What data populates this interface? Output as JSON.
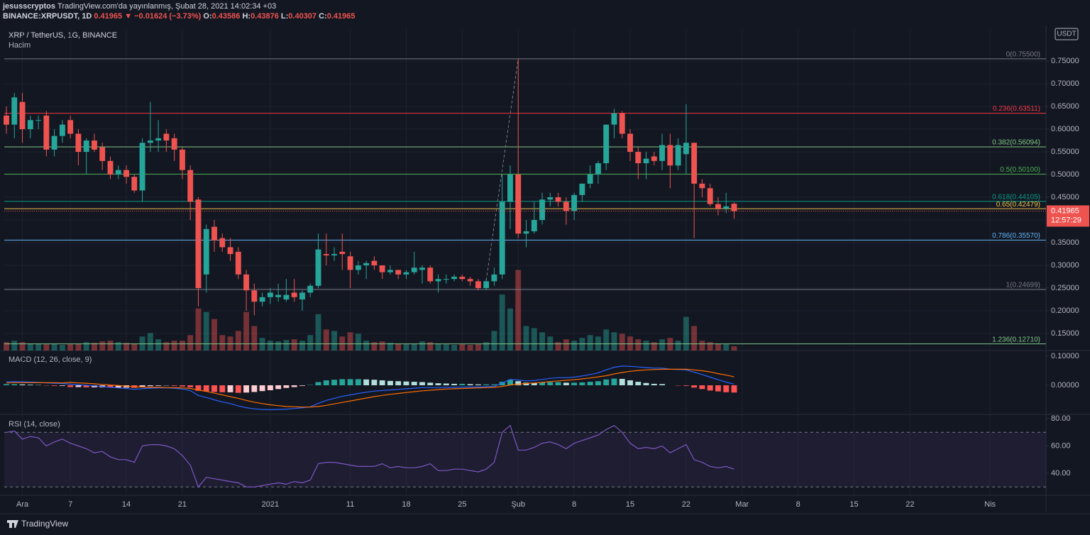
{
  "header": {
    "author": "jesusscryptos",
    "published": "TradingView.com'da yayınlanmış, Şubat 28, 2021 14:02:34 +03",
    "symbol": "BINANCE:XRPUSDT, 1D",
    "last": "0.41965",
    "change": "▼ −0.01624 (−3.73%)",
    "ohlc": [
      {
        "label": "O:",
        "value": "0.43586"
      },
      {
        "label": "H:",
        "value": "0.43876"
      },
      {
        "label": "L:",
        "value": "0.40307"
      },
      {
        "label": "C:",
        "value": "0.41965"
      }
    ]
  },
  "footer": {
    "brand": "TradingView"
  },
  "chart_data": {
    "type": "candlestick",
    "title": "XRP / TetherUS, 1G, BINANCE",
    "currency": "USDT",
    "countdown": "12:57:29",
    "up_color": "#26a69a",
    "down_color": "#ef5350",
    "x": [
      "2020-11-29",
      "2020-11-30",
      "2020-12-01",
      "2020-12-02",
      "2020-12-03",
      "2020-12-04",
      "2020-12-05",
      "2020-12-06",
      "2020-12-07",
      "2020-12-08",
      "2020-12-09",
      "2020-12-10",
      "2020-12-11",
      "2020-12-12",
      "2020-12-13",
      "2020-12-14",
      "2020-12-15",
      "2020-12-16",
      "2020-12-17",
      "2020-12-18",
      "2020-12-19",
      "2020-12-20",
      "2020-12-21",
      "2020-12-22",
      "2020-12-23",
      "2020-12-24",
      "2020-12-25",
      "2020-12-26",
      "2020-12-27",
      "2020-12-28",
      "2020-12-29",
      "2020-12-30",
      "2020-12-31",
      "2021-01-01",
      "2021-01-02",
      "2021-01-03",
      "2021-01-04",
      "2021-01-05",
      "2021-01-06",
      "2021-01-07",
      "2021-01-08",
      "2021-01-09",
      "2021-01-10",
      "2021-01-11",
      "2021-01-12",
      "2021-01-13",
      "2021-01-14",
      "2021-01-15",
      "2021-01-16",
      "2021-01-17",
      "2021-01-18",
      "2021-01-19",
      "2021-01-20",
      "2021-01-21",
      "2021-01-22",
      "2021-01-23",
      "2021-01-24",
      "2021-01-25",
      "2021-01-26",
      "2021-01-27",
      "2021-01-28",
      "2021-01-29",
      "2021-01-30",
      "2021-01-31",
      "2021-02-01",
      "2021-02-02",
      "2021-02-03",
      "2021-02-04",
      "2021-02-05",
      "2021-02-06",
      "2021-02-07",
      "2021-02-08",
      "2021-02-09",
      "2021-02-10",
      "2021-02-11",
      "2021-02-12",
      "2021-02-13",
      "2021-02-14",
      "2021-02-15",
      "2021-02-16",
      "2021-02-17",
      "2021-02-18",
      "2021-02-19",
      "2021-02-20",
      "2021-02-21",
      "2021-02-22",
      "2021-02-23",
      "2021-02-24",
      "2021-02-25",
      "2021-02-26",
      "2021-02-27",
      "2021-02-28"
    ],
    "open": [
      0.63,
      0.61,
      0.66,
      0.6,
      0.62,
      0.63,
      0.555,
      0.585,
      0.62,
      0.59,
      0.55,
      0.575,
      0.56,
      0.53,
      0.5,
      0.51,
      0.495,
      0.465,
      0.57,
      0.575,
      0.59,
      0.58,
      0.555,
      0.51,
      0.445,
      0.28,
      0.385,
      0.36,
      0.34,
      0.33,
      0.28,
      0.245,
      0.22,
      0.23,
      0.23,
      0.225,
      0.24,
      0.225,
      0.24,
      0.255,
      0.325,
      0.322,
      0.33,
      0.32,
      0.29,
      0.3,
      0.31,
      0.3,
      0.285,
      0.29,
      0.28,
      0.285,
      0.29,
      0.295,
      0.265,
      0.27,
      0.27,
      0.275,
      0.27,
      0.265,
      0.25,
      0.265,
      0.28,
      0.44,
      0.5,
      0.37,
      0.375,
      0.4,
      0.445,
      0.45,
      0.44,
      0.42,
      0.455,
      0.48,
      0.5,
      0.525,
      0.61,
      0.635,
      0.59,
      0.55,
      0.525,
      0.54,
      0.53,
      0.565,
      0.52,
      0.545,
      0.57,
      0.48,
      0.47,
      0.435,
      0.425,
      0.43586
    ],
    "high": [
      0.65,
      0.68,
      0.68,
      0.63,
      0.63,
      0.64,
      0.6,
      0.62,
      0.63,
      0.6,
      0.58,
      0.59,
      0.57,
      0.54,
      0.52,
      0.52,
      0.5,
      0.58,
      0.66,
      0.62,
      0.6,
      0.59,
      0.56,
      0.52,
      0.45,
      0.39,
      0.4,
      0.37,
      0.36,
      0.34,
      0.29,
      0.26,
      0.24,
      0.25,
      0.26,
      0.27,
      0.27,
      0.245,
      0.26,
      0.37,
      0.37,
      0.34,
      0.37,
      0.33,
      0.31,
      0.31,
      0.32,
      0.3,
      0.3,
      0.29,
      0.29,
      0.33,
      0.3,
      0.3,
      0.28,
      0.28,
      0.28,
      0.28,
      0.275,
      0.27,
      0.27,
      0.295,
      0.5,
      0.52,
      0.755,
      0.4,
      0.44,
      0.46,
      0.46,
      0.46,
      0.45,
      0.46,
      0.48,
      0.52,
      0.53,
      0.61,
      0.645,
      0.64,
      0.6,
      0.56,
      0.55,
      0.55,
      0.59,
      0.59,
      0.58,
      0.655,
      0.57,
      0.49,
      0.48,
      0.45,
      0.46,
      0.43876
    ],
    "low": [
      0.59,
      0.58,
      0.57,
      0.58,
      0.6,
      0.54,
      0.54,
      0.57,
      0.58,
      0.52,
      0.5,
      0.55,
      0.51,
      0.49,
      0.49,
      0.48,
      0.46,
      0.44,
      0.55,
      0.55,
      0.55,
      0.53,
      0.49,
      0.4,
      0.21,
      0.24,
      0.33,
      0.33,
      0.31,
      0.27,
      0.2,
      0.19,
      0.21,
      0.215,
      0.22,
      0.22,
      0.22,
      0.2,
      0.23,
      0.25,
      0.3,
      0.31,
      0.29,
      0.25,
      0.28,
      0.27,
      0.29,
      0.27,
      0.28,
      0.27,
      0.27,
      0.28,
      0.26,
      0.26,
      0.24,
      0.26,
      0.265,
      0.265,
      0.255,
      0.245,
      0.245,
      0.255,
      0.27,
      0.38,
      0.36,
      0.34,
      0.37,
      0.39,
      0.43,
      0.43,
      0.39,
      0.4,
      0.44,
      0.47,
      0.48,
      0.51,
      0.58,
      0.58,
      0.53,
      0.49,
      0.49,
      0.52,
      0.51,
      0.47,
      0.51,
      0.5,
      0.36,
      0.45,
      0.43,
      0.41,
      0.415,
      0.40307
    ],
    "close": [
      0.61,
      0.67,
      0.6,
      0.62,
      0.62,
      0.555,
      0.585,
      0.61,
      0.59,
      0.55,
      0.575,
      0.555,
      0.53,
      0.5,
      0.51,
      0.495,
      0.465,
      0.57,
      0.575,
      0.58,
      0.575,
      0.555,
      0.51,
      0.44,
      0.25,
      0.38,
      0.355,
      0.34,
      0.325,
      0.28,
      0.245,
      0.22,
      0.23,
      0.24,
      0.235,
      0.235,
      0.23,
      0.24,
      0.255,
      0.335,
      0.322,
      0.325,
      0.325,
      0.29,
      0.3,
      0.305,
      0.3,
      0.285,
      0.29,
      0.28,
      0.285,
      0.295,
      0.295,
      0.265,
      0.27,
      0.27,
      0.275,
      0.27,
      0.265,
      0.25,
      0.265,
      0.28,
      0.44,
      0.5,
      0.37,
      0.375,
      0.4,
      0.445,
      0.45,
      0.44,
      0.42,
      0.455,
      0.48,
      0.5,
      0.525,
      0.61,
      0.635,
      0.59,
      0.55,
      0.525,
      0.535,
      0.53,
      0.565,
      0.52,
      0.565,
      0.57,
      0.48,
      0.47,
      0.435,
      0.425,
      0.43,
      0.41965
    ],
    "volume": {
      "name": "Hacim",
      "values": [
        12,
        14,
        12,
        10,
        10,
        9,
        10,
        8,
        9,
        10,
        12,
        11,
        13,
        14,
        12,
        11,
        10,
        20,
        25,
        16,
        12,
        14,
        14,
        22,
        60,
        55,
        45,
        22,
        20,
        28,
        55,
        35,
        18,
        14,
        13,
        15,
        16,
        14,
        22,
        52,
        30,
        28,
        20,
        26,
        24,
        14,
        12,
        13,
        11,
        10,
        9,
        10,
        13,
        12,
        10,
        9,
        8,
        9,
        8,
        9,
        12,
        28,
        80,
        60,
        115,
        35,
        32,
        26,
        20,
        12,
        16,
        14,
        18,
        22,
        20,
        30,
        26,
        24,
        20,
        16,
        14,
        12,
        16,
        18,
        14,
        48,
        35,
        14,
        12,
        10,
        9,
        6
      ]
    },
    "xlim": [
      "2020-11-29",
      "2021-04-08"
    ],
    "xticks": [
      {
        "value": "2020-12-01",
        "label": "Ara"
      },
      {
        "value": "2020-12-07",
        "label": "7"
      },
      {
        "value": "2020-12-14",
        "label": "14"
      },
      {
        "value": "2020-12-21",
        "label": "21"
      },
      {
        "value": "2021-01-01",
        "label": "2021"
      },
      {
        "value": "2021-01-11",
        "label": "11"
      },
      {
        "value": "2021-01-18",
        "label": "18"
      },
      {
        "value": "2021-01-25",
        "label": "25"
      },
      {
        "value": "2021-02-01",
        "label": "Şub"
      },
      {
        "value": "2021-02-08",
        "label": "8"
      },
      {
        "value": "2021-02-15",
        "label": "15"
      },
      {
        "value": "2021-02-22",
        "label": "22"
      },
      {
        "value": "2021-03-01",
        "label": "Mar"
      },
      {
        "value": "2021-03-08",
        "label": "8"
      },
      {
        "value": "2021-03-15",
        "label": "15"
      },
      {
        "value": "2021-03-22",
        "label": "22"
      },
      {
        "value": "2021-04-01",
        "label": "Nis"
      }
    ],
    "ylim": [
      0.1125,
      0.822
    ],
    "yticks": [
      {
        "value": 0.15,
        "label": "0.15000"
      },
      {
        "value": 0.2,
        "label": "0.20000"
      },
      {
        "value": 0.25,
        "label": "0.25000"
      },
      {
        "value": 0.3,
        "label": "0.30000"
      },
      {
        "value": 0.35,
        "label": "0.35000"
      },
      {
        "value": 0.4,
        "label": "0.40000"
      },
      {
        "value": 0.45,
        "label": "0.45000"
      },
      {
        "value": 0.5,
        "label": "0.50000"
      },
      {
        "value": 0.55,
        "label": "0.55000"
      },
      {
        "value": 0.6,
        "label": "0.60000"
      },
      {
        "value": 0.65,
        "label": "0.65000"
      },
      {
        "value": 0.7,
        "label": "0.70000"
      },
      {
        "value": 0.75,
        "label": "0.75000"
      }
    ],
    "grid": true,
    "fib": [
      {
        "value": 0.755,
        "label": "0(0.75500)",
        "color": "#787b86"
      },
      {
        "value": 0.63511,
        "label": "0.236(0.63511)",
        "color": "#f23645"
      },
      {
        "value": 0.56094,
        "label": "0.382(0.56094)",
        "color": "#81c784"
      },
      {
        "value": 0.501,
        "label": "0.5(0.50100)",
        "color": "#4caf50"
      },
      {
        "value": 0.44105,
        "label": "0.618(0.44105)",
        "color": "#089981"
      },
      {
        "value": 0.42479,
        "label": "0.65(0.42479)",
        "color": "#f0c24a"
      },
      {
        "value": 0.3557,
        "label": "0.786(0.35570)",
        "color": "#64b5f6"
      },
      {
        "value": 0.24699,
        "label": "1(0.24699)",
        "color": "#787b86"
      },
      {
        "value": 0.1271,
        "label": "1.236(0.12710)",
        "color": "#81c784"
      }
    ],
    "trend_line": {
      "x": [
        "2021-01-28",
        "2021-02-01"
      ],
      "values": [
        0.267,
        0.755
      ],
      "color": "#787b86"
    },
    "macd": {
      "title": "MACD (12, 26, close, 9)",
      "ylim": [
        -0.1,
        0.1146
      ],
      "yticks": [
        {
          "value": 0.1,
          "label": "0.10000"
        },
        {
          "value": 0,
          "label": "0.00000"
        }
      ],
      "macd": {
        "color": "#2962ff",
        "values": [
          0.012,
          0.013,
          0.012,
          0.011,
          0.01,
          0.008,
          0.007,
          0.006,
          0.004,
          0.002,
          0.0,
          -0.002,
          -0.004,
          -0.007,
          -0.009,
          -0.011,
          -0.014,
          -0.012,
          -0.01,
          -0.009,
          -0.009,
          -0.01,
          -0.013,
          -0.018,
          -0.035,
          -0.042,
          -0.05,
          -0.057,
          -0.063,
          -0.071,
          -0.077,
          -0.081,
          -0.083,
          -0.084,
          -0.083,
          -0.082,
          -0.08,
          -0.077,
          -0.074,
          -0.062,
          -0.052,
          -0.045,
          -0.038,
          -0.033,
          -0.028,
          -0.024,
          -0.02,
          -0.018,
          -0.016,
          -0.014,
          -0.012,
          -0.01,
          -0.008,
          -0.008,
          -0.008,
          -0.007,
          -0.007,
          -0.006,
          -0.006,
          -0.006,
          -0.005,
          -0.004,
          0.008,
          0.02,
          0.018,
          0.015,
          0.016,
          0.02,
          0.024,
          0.026,
          0.026,
          0.028,
          0.032,
          0.037,
          0.043,
          0.053,
          0.062,
          0.066,
          0.065,
          0.063,
          0.061,
          0.059,
          0.059,
          0.055,
          0.054,
          0.053,
          0.045,
          0.037,
          0.028,
          0.019,
          0.011,
          0.004
        ]
      },
      "signal": {
        "color": "#ff6d00",
        "values": [
          0.008,
          0.009,
          0.009,
          0.009,
          0.009,
          0.009,
          0.009,
          0.008,
          0.01,
          0.008,
          0.007,
          0.005,
          0.003,
          0.001,
          -0.001,
          -0.003,
          -0.005,
          -0.006,
          -0.007,
          -0.007,
          -0.008,
          -0.008,
          -0.009,
          -0.011,
          -0.016,
          -0.021,
          -0.027,
          -0.033,
          -0.039,
          -0.045,
          -0.052,
          -0.058,
          -0.063,
          -0.067,
          -0.07,
          -0.073,
          -0.074,
          -0.075,
          -0.075,
          -0.073,
          -0.069,
          -0.064,
          -0.059,
          -0.054,
          -0.049,
          -0.044,
          -0.039,
          -0.035,
          -0.031,
          -0.028,
          -0.025,
          -0.022,
          -0.019,
          -0.017,
          -0.015,
          -0.013,
          -0.012,
          -0.011,
          -0.01,
          -0.009,
          -0.008,
          -0.007,
          -0.004,
          0.001,
          0.004,
          0.006,
          0.008,
          0.01,
          0.013,
          0.015,
          0.017,
          0.019,
          0.022,
          0.025,
          0.029,
          0.033,
          0.039,
          0.044,
          0.048,
          0.051,
          0.053,
          0.054,
          0.055,
          0.055,
          0.055,
          0.055,
          0.053,
          0.05,
          0.046,
          0.04,
          0.035,
          0.029
        ]
      },
      "histogram": {
        "colors": {
          "grow_above": "#26a69a",
          "fall_above": "#b2dfdb",
          "grow_below": "#ffcdd2",
          "fall_below": "#ff5252"
        },
        "values": [
          0.004,
          0.004,
          0.003,
          0.002,
          0.001,
          -0.001,
          -0.002,
          -0.002,
          -0.006,
          -0.006,
          -0.007,
          -0.007,
          -0.007,
          -0.008,
          -0.008,
          -0.008,
          -0.009,
          -0.006,
          -0.003,
          -0.002,
          -0.001,
          -0.002,
          -0.004,
          -0.007,
          -0.019,
          -0.021,
          -0.023,
          -0.024,
          -0.024,
          -0.026,
          -0.025,
          -0.023,
          -0.02,
          -0.017,
          -0.013,
          -0.009,
          -0.006,
          -0.002,
          0.001,
          0.011,
          0.017,
          0.019,
          0.021,
          0.021,
          0.021,
          0.02,
          0.019,
          0.017,
          0.015,
          0.014,
          0.013,
          0.012,
          0.011,
          0.009,
          0.007,
          0.006,
          0.005,
          0.005,
          0.004,
          0.003,
          0.003,
          0.003,
          0.012,
          0.019,
          0.014,
          0.009,
          0.008,
          0.01,
          0.011,
          0.011,
          0.009,
          0.009,
          0.01,
          0.012,
          0.014,
          0.02,
          0.023,
          0.022,
          0.017,
          0.012,
          0.008,
          0.005,
          0.004,
          0.0,
          -0.001,
          -0.002,
          -0.008,
          -0.013,
          -0.018,
          -0.021,
          -0.024,
          -0.025
        ]
      }
    },
    "rsi": {
      "title": "RSI (14, close)",
      "ylim": [
        23.9,
        82.1
      ],
      "yticks": [
        {
          "value": 80,
          "label": "80.00"
        },
        {
          "value": 60,
          "label": "60.00"
        },
        {
          "value": 40,
          "label": "40.00"
        }
      ],
      "bands": [
        30,
        70
      ],
      "band_color": "#7e57c2",
      "color": "#7e57c2",
      "values": [
        70,
        71,
        65,
        67,
        66,
        60,
        63,
        65,
        62,
        60,
        58,
        55,
        56,
        52,
        50,
        50,
        48,
        60,
        61,
        61,
        60,
        58,
        53,
        46,
        30,
        37,
        36,
        35,
        34,
        33,
        30,
        30,
        31,
        32,
        33,
        32,
        34,
        33,
        35,
        47,
        48,
        48,
        47,
        46,
        45,
        45,
        45,
        47,
        44,
        45,
        44,
        44,
        45,
        47,
        42,
        42,
        43,
        43,
        42,
        41,
        43,
        48,
        70,
        75,
        57,
        57,
        59,
        62,
        63,
        61,
        58,
        62,
        64,
        66,
        68,
        72,
        75,
        70,
        62,
        58,
        59,
        58,
        60,
        55,
        58,
        61,
        50,
        48,
        45,
        44,
        45,
        43
      ]
    }
  }
}
